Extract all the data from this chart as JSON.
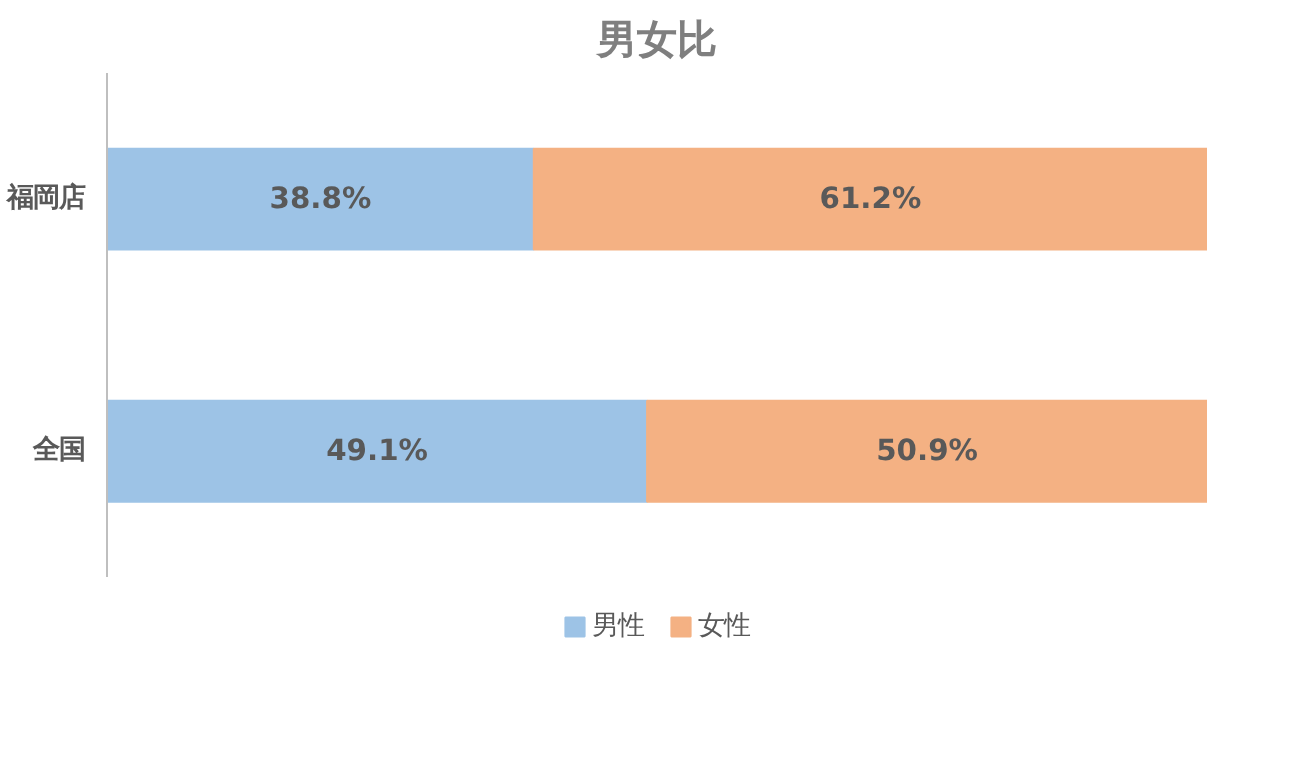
{
  "chart_data": {
    "type": "bar",
    "orientation": "horizontal",
    "stacked": true,
    "title": "男女比",
    "categories": [
      "福岡店",
      "全国"
    ],
    "series": [
      {
        "name": "男性",
        "color": "#9dc3e6",
        "values": [
          38.8,
          49.1
        ],
        "value_labels": [
          "38.8%",
          "49.1%"
        ]
      },
      {
        "name": "女性",
        "color": "#f4b183",
        "values": [
          61.2,
          50.9
        ],
        "value_labels": [
          "61.2%",
          "50.9%"
        ]
      }
    ],
    "xlim": [
      0,
      100
    ],
    "tick_labels": "y",
    "grid": false,
    "legend": "bottom"
  }
}
